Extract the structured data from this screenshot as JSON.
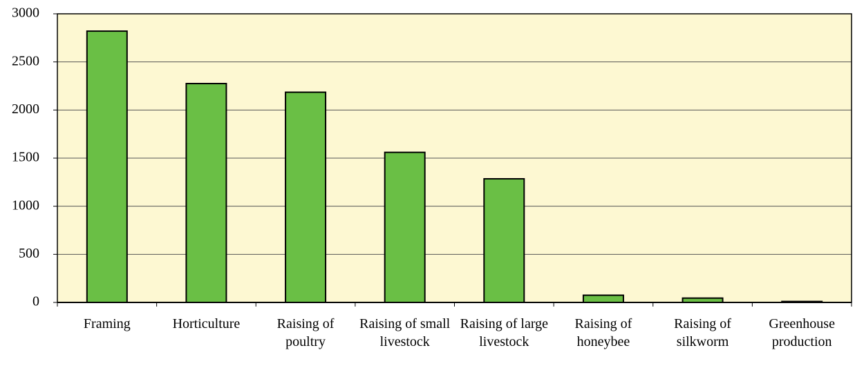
{
  "chart_data": {
    "type": "bar",
    "categories": [
      "Framing",
      "Horticulture",
      "Raising of poultry",
      "Raising of small livestock",
      "Raising of large livestock",
      "Raising of honeybee",
      "Raising of silkworm",
      "Greenhouse production"
    ],
    "values": [
      2820,
      2275,
      2185,
      1560,
      1285,
      75,
      45,
      10
    ],
    "color": "#6abf45",
    "ylim": [
      0,
      3000
    ],
    "yticks": [
      0,
      500,
      1000,
      1500,
      2000,
      2500,
      3000
    ],
    "grid": true
  }
}
